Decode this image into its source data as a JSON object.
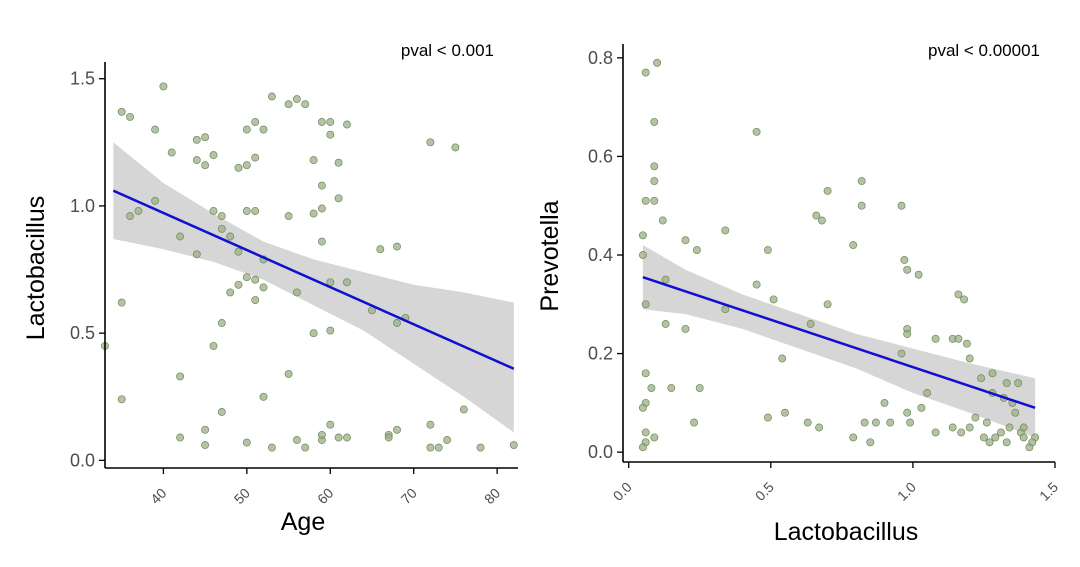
{
  "chart_data": [
    {
      "type": "scatter",
      "panel": "left",
      "xlabel": "Age",
      "ylabel": "Lactobacillus",
      "xlim": [
        33,
        82.5
      ],
      "ylim": [
        -0.03,
        1.55
      ],
      "x_ticks": [
        40,
        50,
        60,
        70,
        80
      ],
      "y_ticks": [
        0.0,
        0.5,
        1.0,
        1.5
      ],
      "y_tick_labels": [
        "0.0",
        "0.5",
        "1.0",
        "1.5"
      ],
      "annotation": "pval < 0.001",
      "grid": false,
      "colors": {
        "points": "#9aaf84",
        "fit_line": "#1010d0",
        "confidence_band": "#c8c8c8"
      },
      "fit_line": {
        "x": [
          34,
          82
        ],
        "y": [
          1.06,
          0.36
        ]
      },
      "confidence_band": {
        "x": [
          34,
          40,
          46,
          52,
          58,
          64,
          70,
          76,
          82
        ],
        "upper": [
          1.25,
          1.09,
          0.97,
          0.86,
          0.79,
          0.74,
          0.69,
          0.66,
          0.62
        ],
        "lower": [
          0.87,
          0.83,
          0.78,
          0.71,
          0.61,
          0.51,
          0.38,
          0.25,
          0.11
        ]
      },
      "points": [
        [
          35,
          1.37
        ],
        [
          36,
          1.35
        ],
        [
          40,
          1.47
        ],
        [
          41,
          1.21
        ],
        [
          39,
          1.3
        ],
        [
          44,
          1.26
        ],
        [
          44,
          1.18
        ],
        [
          45,
          1.27
        ],
        [
          46,
          1.2
        ],
        [
          45,
          1.16
        ],
        [
          49,
          1.15
        ],
        [
          50,
          1.16
        ],
        [
          51,
          1.19
        ],
        [
          50,
          1.3
        ],
        [
          51,
          1.33
        ],
        [
          52,
          1.3
        ],
        [
          53,
          1.43
        ],
        [
          55,
          1.4
        ],
        [
          56,
          1.42
        ],
        [
          57,
          1.4
        ],
        [
          59,
          1.33
        ],
        [
          60,
          1.33
        ],
        [
          60,
          1.28
        ],
        [
          62,
          1.32
        ],
        [
          61,
          1.17
        ],
        [
          58,
          1.18
        ],
        [
          59,
          1.08
        ],
        [
          61,
          1.03
        ],
        [
          58,
          0.97
        ],
        [
          59,
          0.99
        ],
        [
          55,
          0.96
        ],
        [
          36,
          0.96
        ],
        [
          37,
          0.98
        ],
        [
          39,
          1.02
        ],
        [
          42,
          0.88
        ],
        [
          44,
          0.81
        ],
        [
          46,
          0.98
        ],
        [
          47,
          0.96
        ],
        [
          48,
          0.88
        ],
        [
          47,
          0.91
        ],
        [
          50,
          0.98
        ],
        [
          51,
          0.98
        ],
        [
          49,
          0.82
        ],
        [
          52,
          0.79
        ],
        [
          50,
          0.72
        ],
        [
          51,
          0.71
        ],
        [
          52,
          0.68
        ],
        [
          48,
          0.66
        ],
        [
          47,
          0.54
        ],
        [
          46,
          0.45
        ],
        [
          51,
          0.63
        ],
        [
          49,
          0.69
        ],
        [
          56,
          0.66
        ],
        [
          60,
          0.7
        ],
        [
          62,
          0.7
        ],
        [
          58,
          0.5
        ],
        [
          60,
          0.51
        ],
        [
          59,
          0.86
        ],
        [
          65,
          0.59
        ],
        [
          66,
          0.83
        ],
        [
          68,
          0.84
        ],
        [
          69,
          0.56
        ],
        [
          68,
          0.54
        ],
        [
          33,
          0.45
        ],
        [
          35,
          0.62
        ],
        [
          35,
          0.24
        ],
        [
          42,
          0.33
        ],
        [
          47,
          0.19
        ],
        [
          52,
          0.25
        ],
        [
          55,
          0.34
        ],
        [
          42,
          0.09
        ],
        [
          45,
          0.12
        ],
        [
          45,
          0.06
        ],
        [
          50,
          0.07
        ],
        [
          53,
          0.05
        ],
        [
          56,
          0.08
        ],
        [
          57,
          0.05
        ],
        [
          59,
          0.08
        ],
        [
          59,
          0.1
        ],
        [
          60,
          0.14
        ],
        [
          61,
          0.09
        ],
        [
          62,
          0.09
        ],
        [
          67,
          0.1
        ],
        [
          67,
          0.09
        ],
        [
          68,
          0.12
        ],
        [
          72,
          0.05
        ],
        [
          73,
          0.05
        ],
        [
          72,
          0.14
        ],
        [
          74,
          0.08
        ],
        [
          76,
          0.2
        ],
        [
          78,
          0.05
        ],
        [
          82,
          0.06
        ],
        [
          72,
          1.25
        ],
        [
          75,
          1.23
        ]
      ]
    },
    {
      "type": "scatter",
      "panel": "right",
      "xlabel": "Lactobacillus",
      "ylabel": "Prevotella",
      "xlim": [
        -0.02,
        1.5
      ],
      "ylim": [
        -0.02,
        0.82
      ],
      "x_ticks": [
        0.0,
        0.5,
        1.0,
        1.5
      ],
      "x_tick_labels": [
        "0.0",
        "0.5",
        "1.0",
        "1.5"
      ],
      "y_ticks": [
        0.0,
        0.2,
        0.4,
        0.6,
        0.8
      ],
      "y_tick_labels": [
        "0.0",
        "0.2",
        "0.4",
        "0.6",
        "0.8"
      ],
      "annotation": "pval < 0.00001",
      "grid": false,
      "colors": {
        "points": "#9aaf84",
        "fit_line": "#1010d0",
        "confidence_band": "#c8c8c8"
      },
      "fit_line": {
        "x": [
          0.05,
          1.43
        ],
        "y": [
          0.355,
          0.09
        ]
      },
      "confidence_band": {
        "x": [
          0.05,
          0.2,
          0.4,
          0.6,
          0.8,
          1.0,
          1.2,
          1.43
        ],
        "upper": [
          0.42,
          0.37,
          0.32,
          0.28,
          0.24,
          0.21,
          0.18,
          0.15
        ],
        "lower": [
          0.29,
          0.28,
          0.25,
          0.21,
          0.17,
          0.12,
          0.08,
          0.03
        ]
      },
      "points": [
        [
          0.06,
          0.77
        ],
        [
          0.1,
          0.79
        ],
        [
          0.09,
          0.67
        ],
        [
          0.06,
          0.51
        ],
        [
          0.09,
          0.58
        ],
        [
          0.09,
          0.55
        ],
        [
          0.09,
          0.51
        ],
        [
          0.12,
          0.47
        ],
        [
          0.05,
          0.44
        ],
        [
          0.05,
          0.4
        ],
        [
          0.06,
          0.3
        ],
        [
          0.13,
          0.35
        ],
        [
          0.2,
          0.43
        ],
        [
          0.24,
          0.41
        ],
        [
          0.34,
          0.45
        ],
        [
          0.45,
          0.65
        ],
        [
          0.49,
          0.41
        ],
        [
          0.45,
          0.34
        ],
        [
          0.51,
          0.31
        ],
        [
          0.68,
          0.47
        ],
        [
          0.66,
          0.48
        ],
        [
          0.7,
          0.53
        ],
        [
          0.82,
          0.55
        ],
        [
          0.82,
          0.5
        ],
        [
          0.79,
          0.42
        ],
        [
          0.96,
          0.5
        ],
        [
          0.97,
          0.39
        ],
        [
          0.98,
          0.37
        ],
        [
          1.02,
          0.36
        ],
        [
          0.13,
          0.26
        ],
        [
          0.2,
          0.25
        ],
        [
          0.34,
          0.29
        ],
        [
          0.54,
          0.19
        ],
        [
          0.64,
          0.26
        ],
        [
          0.7,
          0.3
        ],
        [
          0.98,
          0.25
        ],
        [
          0.98,
          0.24
        ],
        [
          0.96,
          0.2
        ],
        [
          1.08,
          0.23
        ],
        [
          1.14,
          0.23
        ],
        [
          1.16,
          0.32
        ],
        [
          1.18,
          0.31
        ],
        [
          1.16,
          0.23
        ],
        [
          1.19,
          0.22
        ],
        [
          1.2,
          0.19
        ],
        [
          1.24,
          0.15
        ],
        [
          1.28,
          0.16
        ],
        [
          1.33,
          0.14
        ],
        [
          1.28,
          0.12
        ],
        [
          1.05,
          0.12
        ],
        [
          0.06,
          0.16
        ],
        [
          0.08,
          0.13
        ],
        [
          0.15,
          0.13
        ],
        [
          0.25,
          0.13
        ],
        [
          0.06,
          0.1
        ],
        [
          0.05,
          0.09
        ],
        [
          0.06,
          0.04
        ],
        [
          0.06,
          0.02
        ],
        [
          0.09,
          0.03
        ],
        [
          0.05,
          0.01
        ],
        [
          0.23,
          0.06
        ],
        [
          0.49,
          0.07
        ],
        [
          0.55,
          0.08
        ],
        [
          0.63,
          0.06
        ],
        [
          0.67,
          0.05
        ],
        [
          0.79,
          0.03
        ],
        [
          0.85,
          0.02
        ],
        [
          0.87,
          0.06
        ],
        [
          0.83,
          0.06
        ],
        [
          0.9,
          0.1
        ],
        [
          0.92,
          0.06
        ],
        [
          0.98,
          0.08
        ],
        [
          0.99,
          0.06
        ],
        [
          1.03,
          0.09
        ],
        [
          1.08,
          0.04
        ],
        [
          1.14,
          0.05
        ],
        [
          1.17,
          0.04
        ],
        [
          1.2,
          0.05
        ],
        [
          1.22,
          0.07
        ],
        [
          1.25,
          0.03
        ],
        [
          1.27,
          0.02
        ],
        [
          1.29,
          0.03
        ],
        [
          1.31,
          0.04
        ],
        [
          1.34,
          0.05
        ],
        [
          1.36,
          0.08
        ],
        [
          1.38,
          0.04
        ],
        [
          1.39,
          0.03
        ],
        [
          1.41,
          0.01
        ],
        [
          1.43,
          0.03
        ],
        [
          1.42,
          0.02
        ],
        [
          1.26,
          0.06
        ],
        [
          1.32,
          0.11
        ],
        [
          1.35,
          0.1
        ],
        [
          1.37,
          0.14
        ],
        [
          1.33,
          0.02
        ],
        [
          1.39,
          0.05
        ]
      ]
    }
  ]
}
